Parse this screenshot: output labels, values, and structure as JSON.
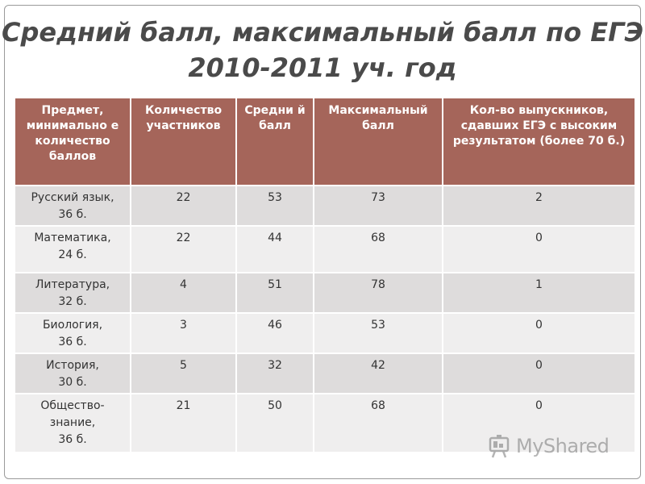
{
  "title": {
    "line1": "Средний балл, максимальный балл по ЕГЭ",
    "line2": "2010-2011 уч. год"
  },
  "table": {
    "headers": [
      "Предмет, минимально е количество баллов",
      "Количество участников",
      "Средни й балл",
      "Максимальный балл",
      "Кол-во выпускников, сдавших ЕГЭ с высоким результатом (более 70 б.)"
    ],
    "rows": [
      {
        "subject_line1": "Русский язык,",
        "subject_line2": "36 б.",
        "subject_line3": "",
        "participants": "22",
        "avg": "53",
        "max": "73",
        "high": "2"
      },
      {
        "subject_line1": "Математика,",
        "subject_line2": "24 б.",
        "subject_line3": "",
        "participants": "22",
        "avg": "44",
        "max": "68",
        "high": "0"
      },
      {
        "subject_line1": "Литература,",
        "subject_line2": "32 б.",
        "subject_line3": "",
        "participants": "4",
        "avg": "51",
        "max": "78",
        "high": "1"
      },
      {
        "subject_line1": "Биология,",
        "subject_line2": "36 б.",
        "subject_line3": "",
        "participants": "3",
        "avg": "46",
        "max": "53",
        "high": "0"
      },
      {
        "subject_line1": "История,",
        "subject_line2": "30 б.",
        "subject_line3": "",
        "participants": "5",
        "avg": "32",
        "max": "42",
        "high": "0"
      },
      {
        "subject_line1": "Общество-",
        "subject_line2": "знание,",
        "subject_line3": "36 б.",
        "participants": "21",
        "avg": "50",
        "max": "68",
        "high": "0"
      }
    ]
  },
  "watermark": {
    "text": "MyShared",
    "icon": "myshared-logo-icon"
  },
  "colors": {
    "header_bg": "#a5655a",
    "row_dark": "#dedcdc",
    "row_light": "#efeeee",
    "title_text": "#4a4a4a"
  }
}
